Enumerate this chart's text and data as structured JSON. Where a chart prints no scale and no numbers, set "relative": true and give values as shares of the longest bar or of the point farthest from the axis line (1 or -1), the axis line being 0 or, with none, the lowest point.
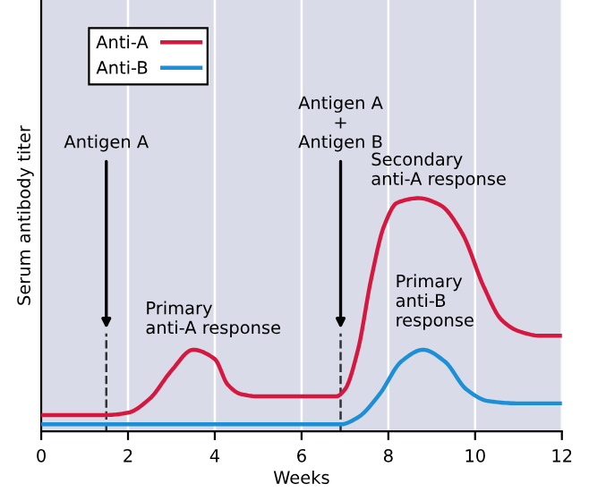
{
  "chart_data": {
    "type": "line",
    "xlabel": "Weeks",
    "ylabel": "Serum antibody titer",
    "relative": true,
    "xlim": [
      0,
      12
    ],
    "xticks": [
      0,
      2,
      4,
      6,
      8,
      10,
      12
    ],
    "grid": "x",
    "legend": "top left",
    "line_style": "solid",
    "series": [
      {
        "name": "Anti-A",
        "color": "#d6173f",
        "x": [
          0,
          1.5,
          2,
          2.5,
          3,
          3.5,
          4,
          4.3,
          4.6,
          5,
          6,
          6.8,
          7.0,
          7.3,
          7.6,
          7.9,
          8.2,
          8.7,
          9.2,
          9.7,
          10.2,
          10.6,
          11,
          11.5,
          12
        ],
        "values": [
          0.07,
          0.07,
          0.08,
          0.14,
          0.26,
          0.35,
          0.31,
          0.2,
          0.16,
          0.15,
          0.15,
          0.15,
          0.18,
          0.35,
          0.65,
          0.88,
          0.98,
          1.0,
          0.97,
          0.85,
          0.62,
          0.48,
          0.43,
          0.41,
          0.41
        ]
      },
      {
        "name": "Anti-B",
        "color": "#1c8fd6",
        "x": [
          0,
          6.9,
          7.3,
          7.8,
          8.3,
          8.8,
          9.3,
          9.8,
          10.3,
          11,
          12
        ],
        "values": [
          0.03,
          0.03,
          0.06,
          0.16,
          0.3,
          0.35,
          0.3,
          0.18,
          0.13,
          0.12,
          0.12
        ]
      }
    ],
    "ref_lines": [
      {
        "axis": "x",
        "value": 1.5,
        "label": "Antigen A",
        "line_style": "dashed",
        "color": "#333333"
      },
      {
        "axis": "x",
        "value": 6.9,
        "label": "Antigen A\n+\nAntigen B",
        "line_style": "dashed",
        "color": "#333333"
      }
    ],
    "annotations": [
      "Primary\nanti-A response",
      "Secondary\nanti-A response",
      "Primary\nanti-B\nresponse"
    ]
  }
}
